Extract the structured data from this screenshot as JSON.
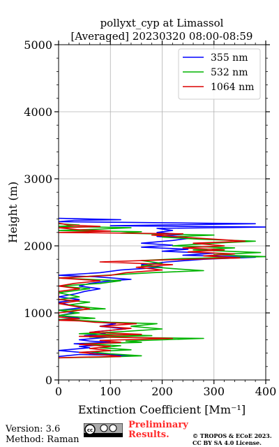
{
  "chart_data": {
    "type": "line",
    "title": "pollyxt_cyp at Limassol",
    "subtitle": "[Averaged] 20230320 08:00-08:59",
    "xlabel": "Extinction Coefficient [Mm⁻¹]",
    "ylabel": "Height (m)",
    "xlim": [
      0,
      400
    ],
    "ylim": [
      0,
      5000
    ],
    "x_ticks": [
      "0",
      "100",
      "200",
      "300",
      "400"
    ],
    "y_ticks": [
      "0",
      "1000",
      "2000",
      "3000",
      "4000",
      "5000"
    ],
    "grid": true,
    "legend_position": "top-right",
    "series": [
      {
        "name": "355 nm",
        "color": "#0000ff",
        "points": [
          [
            0,
            350
          ],
          [
            40,
            380
          ],
          [
            140,
            360
          ],
          [
            60,
            400
          ],
          [
            0,
            440
          ],
          [
            60,
            480
          ],
          [
            40,
            500
          ],
          [
            80,
            520
          ],
          [
            30,
            540
          ],
          [
            100,
            560
          ],
          [
            60,
            580
          ],
          [
            40,
            600
          ],
          [
            100,
            640
          ],
          [
            50,
            660
          ],
          [
            90,
            690
          ],
          [
            70,
            720
          ],
          [
            130,
            760
          ],
          [
            80,
            800
          ],
          [
            110,
            840
          ],
          [
            80,
            860
          ],
          [
            50,
            880
          ],
          [
            0,
            900
          ],
          [
            40,
            920
          ],
          [
            0,
            960
          ],
          [
            30,
            1000
          ],
          [
            0,
            1040
          ],
          [
            50,
            1080
          ],
          [
            20,
            1120
          ],
          [
            0,
            1160
          ],
          [
            40,
            1200
          ],
          [
            0,
            1240
          ],
          [
            30,
            1280
          ],
          [
            50,
            1320
          ],
          [
            80,
            1360
          ],
          [
            40,
            1400
          ],
          [
            60,
            1440
          ],
          [
            100,
            1480
          ],
          [
            140,
            1500
          ],
          [
            70,
            1540
          ],
          [
            0,
            1560
          ],
          [
            80,
            1600
          ],
          [
            120,
            1640
          ],
          [
            200,
            1680
          ],
          [
            160,
            1720
          ],
          [
            210,
            1760
          ],
          [
            280,
            1800
          ],
          [
            380,
            1830
          ],
          [
            240,
            1860
          ],
          [
            300,
            1890
          ],
          [
            200,
            1920
          ],
          [
            250,
            1950
          ],
          [
            160,
            1980
          ],
          [
            220,
            2010
          ],
          [
            160,
            2040
          ],
          [
            220,
            2080
          ],
          [
            250,
            2110
          ],
          [
            190,
            2140
          ],
          [
            240,
            2170
          ],
          [
            190,
            2200
          ],
          [
            220,
            2230
          ],
          [
            190,
            2260
          ],
          [
            400,
            2280
          ],
          [
            100,
            2300
          ],
          [
            380,
            2330
          ],
          [
            0,
            2360
          ],
          [
            30,
            2380
          ],
          [
            120,
            2390
          ],
          [
            0,
            2410
          ]
        ]
      },
      {
        "name": "532 nm",
        "color": "#00b400",
        "points": [
          [
            0,
            330
          ],
          [
            80,
            340
          ],
          [
            160,
            360
          ],
          [
            100,
            390
          ],
          [
            60,
            420
          ],
          [
            140,
            450
          ],
          [
            80,
            480
          ],
          [
            120,
            510
          ],
          [
            50,
            540
          ],
          [
            160,
            560
          ],
          [
            130,
            580
          ],
          [
            280,
            620
          ],
          [
            60,
            640
          ],
          [
            180,
            660
          ],
          [
            40,
            690
          ],
          [
            120,
            720
          ],
          [
            200,
            760
          ],
          [
            140,
            800
          ],
          [
            190,
            840
          ],
          [
            100,
            860
          ],
          [
            60,
            880
          ],
          [
            0,
            900
          ],
          [
            70,
            920
          ],
          [
            0,
            960
          ],
          [
            40,
            1000
          ],
          [
            0,
            1040
          ],
          [
            90,
            1060
          ],
          [
            60,
            1080
          ],
          [
            20,
            1120
          ],
          [
            60,
            1160
          ],
          [
            0,
            1200
          ],
          [
            40,
            1240
          ],
          [
            0,
            1300
          ],
          [
            60,
            1360
          ],
          [
            0,
            1400
          ],
          [
            80,
            1440
          ],
          [
            120,
            1480
          ],
          [
            0,
            1520
          ],
          [
            90,
            1560
          ],
          [
            180,
            1600
          ],
          [
            280,
            1630
          ],
          [
            220,
            1660
          ],
          [
            160,
            1700
          ],
          [
            200,
            1740
          ],
          [
            160,
            1780
          ],
          [
            240,
            1810
          ],
          [
            400,
            1840
          ],
          [
            300,
            1870
          ],
          [
            390,
            1900
          ],
          [
            260,
            1940
          ],
          [
            340,
            1970
          ],
          [
            220,
            2000
          ],
          [
            300,
            2040
          ],
          [
            380,
            2070
          ],
          [
            270,
            2100
          ],
          [
            200,
            2130
          ],
          [
            300,
            2160
          ],
          [
            120,
            2190
          ],
          [
            160,
            2210
          ],
          [
            0,
            2230
          ],
          [
            80,
            2250
          ],
          [
            140,
            2270
          ],
          [
            0,
            2290
          ],
          [
            40,
            2310
          ],
          [
            0,
            2330
          ]
        ]
      },
      {
        "name": "1064 nm",
        "color": "#dc0000",
        "points": [
          [
            0,
            330
          ],
          [
            40,
            340
          ],
          [
            120,
            350
          ],
          [
            80,
            380
          ],
          [
            40,
            410
          ],
          [
            100,
            440
          ],
          [
            60,
            470
          ],
          [
            100,
            500
          ],
          [
            40,
            530
          ],
          [
            120,
            560
          ],
          [
            80,
            590
          ],
          [
            220,
            620
          ],
          [
            40,
            650
          ],
          [
            160,
            680
          ],
          [
            60,
            710
          ],
          [
            100,
            740
          ],
          [
            140,
            770
          ],
          [
            80,
            800
          ],
          [
            150,
            840
          ],
          [
            70,
            860
          ],
          [
            40,
            880
          ],
          [
            0,
            890
          ],
          [
            40,
            910
          ],
          [
            0,
            940
          ],
          [
            0,
            1000
          ],
          [
            60,
            1060
          ],
          [
            30,
            1100
          ],
          [
            0,
            1140
          ],
          [
            40,
            1180
          ],
          [
            0,
            1200
          ],
          [
            0,
            1320
          ],
          [
            40,
            1360
          ],
          [
            0,
            1400
          ],
          [
            30,
            1440
          ],
          [
            80,
            1480
          ],
          [
            0,
            1520
          ],
          [
            100,
            1560
          ],
          [
            130,
            1600
          ],
          [
            200,
            1640
          ],
          [
            150,
            1680
          ],
          [
            220,
            1720
          ],
          [
            80,
            1760
          ],
          [
            200,
            1790
          ],
          [
            350,
            1820
          ],
          [
            280,
            1850
          ],
          [
            340,
            1880
          ],
          [
            250,
            1910
          ],
          [
            320,
            1940
          ],
          [
            240,
            1970
          ],
          [
            320,
            2000
          ],
          [
            260,
            2040
          ],
          [
            360,
            2070
          ],
          [
            300,
            2100
          ],
          [
            240,
            2130
          ],
          [
            180,
            2160
          ],
          [
            240,
            2180
          ],
          [
            0,
            2200
          ],
          [
            100,
            2220
          ],
          [
            40,
            2240
          ],
          [
            0,
            2270
          ],
          [
            80,
            2290
          ],
          [
            20,
            2310
          ],
          [
            0,
            2340
          ]
        ]
      }
    ]
  },
  "footer": {
    "version": "Version: 3.6",
    "method": "Method: Raman",
    "preliminary": "Preliminary Results.",
    "copyright_line1": "© TROPOS & ECoE 2023.",
    "copyright_line2": "CC BY SA 4.0 License.",
    "cc_badge_text": "cc  BY  SA"
  }
}
